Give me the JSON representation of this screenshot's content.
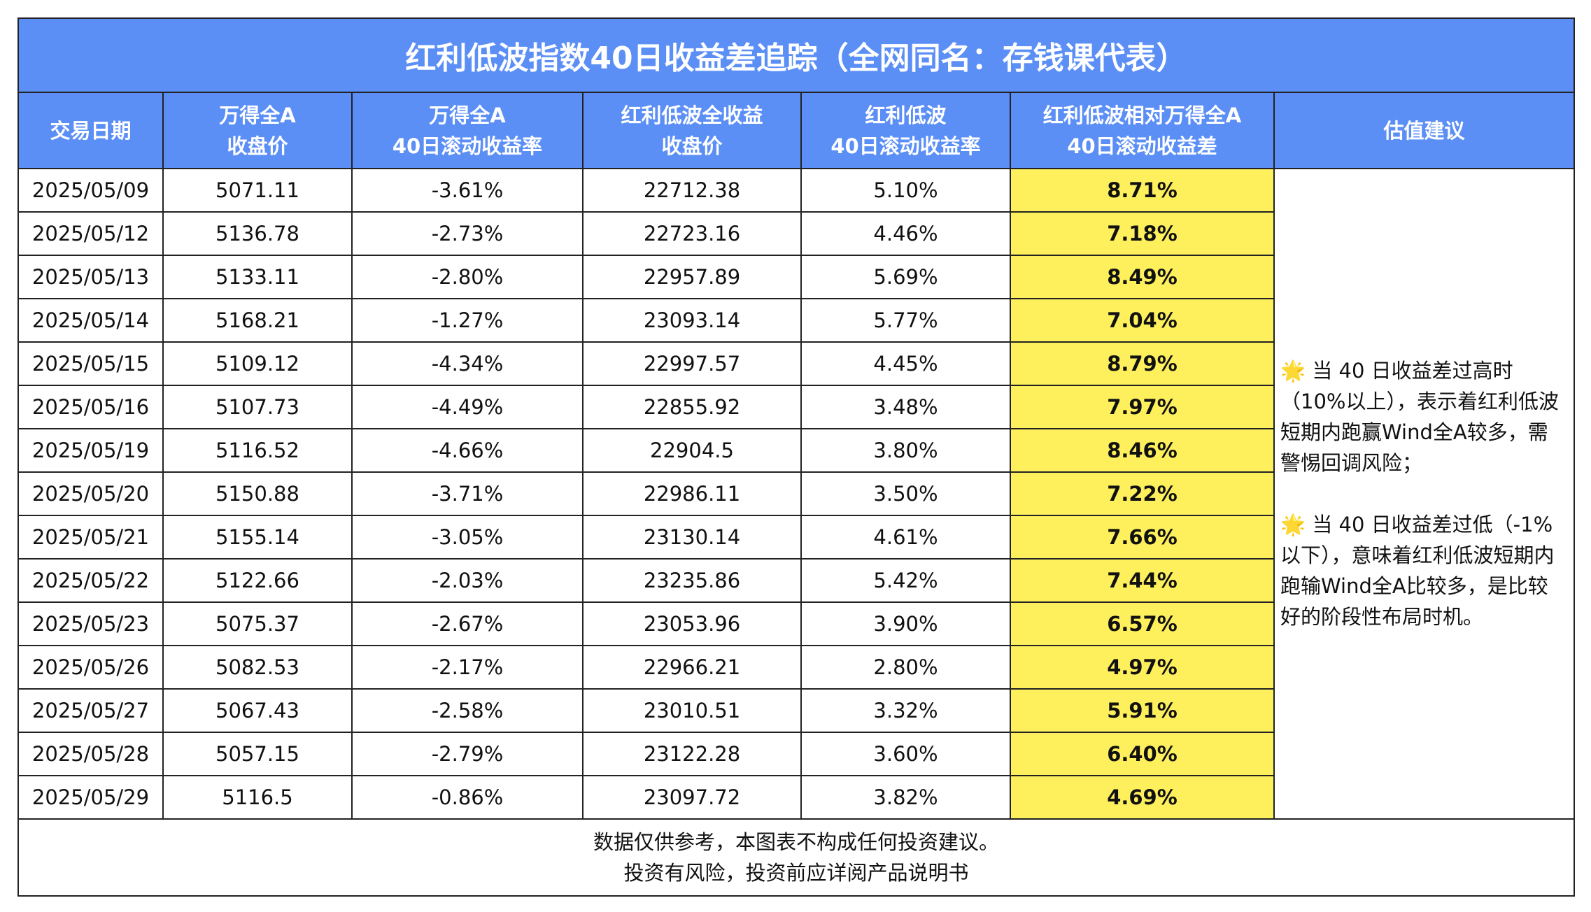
{
  "title": "红利低波指数40日收益差追踪（全网同名：存钱课代表）",
  "table": {
    "headers": [
      [
        "交易日期"
      ],
      [
        "万得全A",
        "收盘价"
      ],
      [
        "万得全A",
        "40日滚动收益率"
      ],
      [
        "红利低波全收益",
        "收盘价"
      ],
      [
        "红利低波",
        "40日滚动收益率"
      ],
      [
        "红利低波相对万得全A",
        "40日滚动收益差"
      ],
      [
        "估值建议"
      ]
    ],
    "rows": [
      [
        "2025/05/09",
        "5071.11",
        "-3.61%",
        "22712.38",
        "5.10%",
        "8.71%"
      ],
      [
        "2025/05/12",
        "5136.78",
        "-2.73%",
        "22723.16",
        "4.46%",
        "7.18%"
      ],
      [
        "2025/05/13",
        "5133.11",
        "-2.80%",
        "22957.89",
        "5.69%",
        "8.49%"
      ],
      [
        "2025/05/14",
        "5168.21",
        "-1.27%",
        "23093.14",
        "5.77%",
        "7.04%"
      ],
      [
        "2025/05/15",
        "5109.12",
        "-4.34%",
        "22997.57",
        "4.45%",
        "8.79%"
      ],
      [
        "2025/05/16",
        "5107.73",
        "-4.49%",
        "22855.92",
        "3.48%",
        "7.97%"
      ],
      [
        "2025/05/19",
        "5116.52",
        "-4.66%",
        "22904.5",
        "3.80%",
        "8.46%"
      ],
      [
        "2025/05/20",
        "5150.88",
        "-3.71%",
        "22986.11",
        "3.50%",
        "7.22%"
      ],
      [
        "2025/05/21",
        "5155.14",
        "-3.05%",
        "23130.14",
        "4.61%",
        "7.66%"
      ],
      [
        "2025/05/22",
        "5122.66",
        "-2.03%",
        "23235.86",
        "5.42%",
        "7.44%"
      ],
      [
        "2025/05/23",
        "5075.37",
        "-2.67%",
        "23053.96",
        "3.90%",
        "6.57%"
      ],
      [
        "2025/05/26",
        "5082.53",
        "-2.17%",
        "22966.21",
        "2.80%",
        "4.97%"
      ],
      [
        "2025/05/27",
        "5067.43",
        "-2.58%",
        "23010.51",
        "3.32%",
        "5.91%"
      ],
      [
        "2025/05/28",
        "5057.15",
        "-2.79%",
        "23122.28",
        "3.60%",
        "6.40%"
      ],
      [
        "2025/05/29",
        "5116.5",
        "-0.86%",
        "23097.72",
        "3.82%",
        "4.69%"
      ]
    ],
    "advice": [
      "🌟 当 40 日收益差过高时（10%以上），表示着红利低波短期内跑赢Wind全A较多，需警惕回调风险；",
      "🌟 当 40 日收益差过低（-1%以下），意味着红利低波短期内跑输Wind全A比较多，是比较好的阶段性布局时机。"
    ]
  },
  "footer": [
    "数据仅供参考，本图表不构成任何投资建议。",
    "投资有风险，投资前应详阅产品说明书"
  ]
}
